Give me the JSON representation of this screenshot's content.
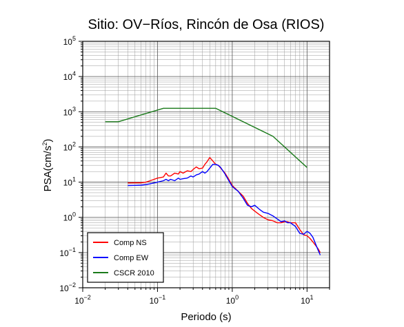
{
  "chart_data": {
    "type": "line",
    "title": "Sitio: OV−Ríos, Rincón de Osa (RIOS)",
    "xlabel": "Periodo (s)",
    "ylabel": "PSA(cm/s2)",
    "ylabel_parts": {
      "base": "PSA(cm/s",
      "sup": "2",
      "close": ")"
    },
    "xscale": "log",
    "yscale": "log",
    "xlim": [
      0.01,
      20
    ],
    "ylim": [
      0.01,
      100000
    ],
    "grid": true,
    "x_ticks": [
      {
        "mantissa": "10",
        "exp": "−2"
      },
      {
        "mantissa": "10",
        "exp": "−1"
      },
      {
        "mantissa": "10",
        "exp": "0"
      },
      {
        "mantissa": "10",
        "exp": "1"
      }
    ],
    "y_ticks": [
      {
        "mantissa": "10",
        "exp": "−2"
      },
      {
        "mantissa": "10",
        "exp": "−1"
      },
      {
        "mantissa": "10",
        "exp": "0"
      },
      {
        "mantissa": "10",
        "exp": "1"
      },
      {
        "mantissa": "10",
        "exp": "2"
      },
      {
        "mantissa": "10",
        "exp": "3"
      },
      {
        "mantissa": "10",
        "exp": "4"
      },
      {
        "mantissa": "10",
        "exp": "5"
      }
    ],
    "legend_position": "bottom-left",
    "series": [
      {
        "name": "Comp NS",
        "color": "#ff0000",
        "x": [
          0.04,
          0.05,
          0.06,
          0.07,
          0.08,
          0.09,
          0.1,
          0.11,
          0.12,
          0.13,
          0.14,
          0.15,
          0.17,
          0.19,
          0.2,
          0.22,
          0.25,
          0.28,
          0.3,
          0.33,
          0.36,
          0.4,
          0.43,
          0.46,
          0.5,
          0.55,
          0.6,
          0.65,
          0.7,
          0.8,
          0.9,
          1.0,
          1.2,
          1.4,
          1.6,
          1.8,
          2.0,
          2.3,
          2.6,
          3.0,
          3.5,
          4.0,
          4.5,
          5.0,
          5.5,
          6.0,
          7.0,
          8.0,
          9.0,
          10.0,
          11.0,
          12.0,
          14.0,
          15.0
        ],
        "y": [
          9.5,
          9.6,
          9.6,
          10,
          11,
          12,
          13,
          13.5,
          14,
          18,
          15,
          15,
          18,
          17,
          20,
          18,
          21,
          20,
          23,
          27,
          24,
          25,
          32,
          38,
          50,
          40,
          32,
          30,
          25,
          18,
          12,
          8,
          5.5,
          4,
          2.5,
          1.8,
          1.5,
          1.2,
          1.0,
          0.85,
          0.8,
          0.7,
          0.7,
          0.75,
          0.75,
          0.7,
          0.7,
          0.45,
          0.32,
          0.3,
          0.25,
          0.2,
          0.13,
          0.1
        ]
      },
      {
        "name": "Comp EW",
        "color": "#0000ff",
        "x": [
          0.04,
          0.05,
          0.06,
          0.07,
          0.08,
          0.09,
          0.1,
          0.11,
          0.12,
          0.13,
          0.14,
          0.15,
          0.17,
          0.19,
          0.2,
          0.22,
          0.25,
          0.28,
          0.3,
          0.33,
          0.36,
          0.4,
          0.43,
          0.46,
          0.5,
          0.55,
          0.6,
          0.65,
          0.7,
          0.8,
          0.9,
          1.0,
          1.2,
          1.4,
          1.6,
          1.8,
          2.0,
          2.3,
          2.6,
          3.0,
          3.5,
          4.0,
          4.5,
          5.0,
          5.5,
          6.0,
          7.0,
          8.0,
          9.0,
          10.0,
          11.0,
          12.0,
          14.0,
          15.0
        ],
        "y": [
          8,
          8.1,
          8.2,
          8.5,
          9,
          9.5,
          10,
          10.5,
          11,
          12,
          11,
          12,
          11,
          13,
          12,
          12.5,
          13,
          15,
          14,
          16,
          17,
          20,
          18,
          20,
          25,
          32,
          32,
          30,
          26,
          17,
          11,
          7.5,
          5.5,
          3.5,
          2.2,
          2.0,
          2.2,
          1.7,
          1.4,
          1.3,
          1.1,
          0.9,
          0.75,
          0.8,
          0.7,
          0.7,
          0.55,
          0.35,
          0.33,
          0.4,
          0.35,
          0.27,
          0.12,
          0.085
        ]
      },
      {
        "name": "CSCR 2010",
        "color": "#1a7a1a",
        "x": [
          0.02,
          0.03,
          0.12,
          0.6,
          3.5,
          10.0
        ],
        "y": [
          520,
          520,
          1250,
          1250,
          200,
          26
        ]
      }
    ]
  }
}
